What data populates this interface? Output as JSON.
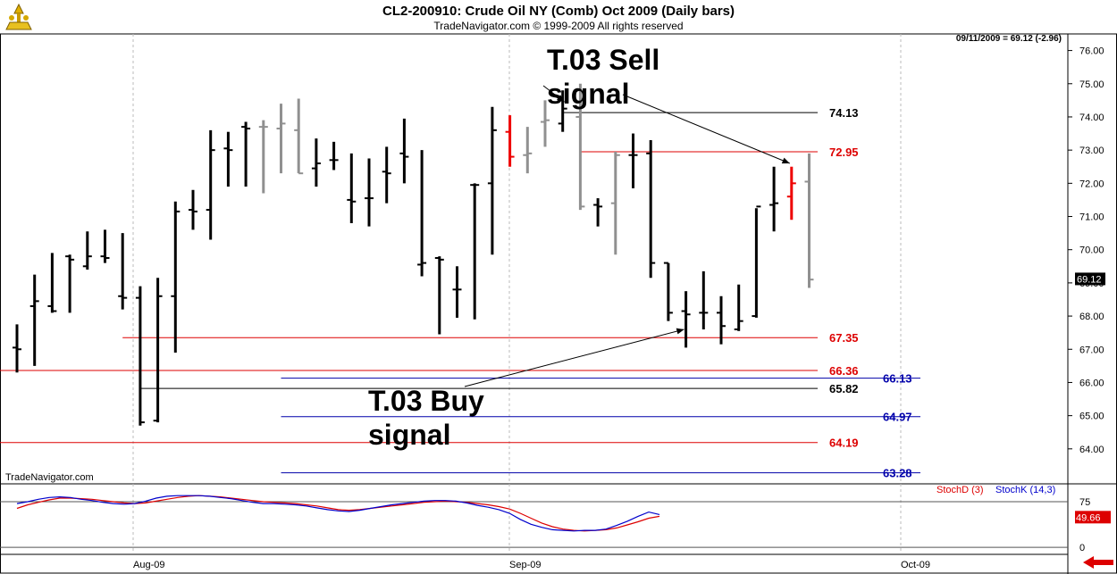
{
  "header": {
    "title": "CL2-200910:  Crude Oil NY (Comb) Oct 2009  (Daily bars)",
    "subtitle": "TradeNavigator.com © 1999-2009 All rights reserved",
    "last_readout": "09/11/2009 = 69.12 (-2.96)"
  },
  "footer": {
    "brand": "TradeNavigator.com"
  },
  "annotations": {
    "sell_signal": "T.03 Sell\nsignal",
    "buy_signal": "T.03 Buy\nsignal"
  },
  "oscillator": {
    "stochd_label": "StochD (3)",
    "stochk_label": "StochK (14,3)",
    "value_label": "49.66",
    "y_ticks": [
      "75",
      "0"
    ],
    "colors": {
      "stochd": "#dd0000",
      "stochk": "#0000cc"
    }
  },
  "colors": {
    "bar_black": "#000000",
    "bar_gray": "#909090",
    "bar_red": "#ee0000",
    "level_red": "#dd0000",
    "level_blue": "#0000aa",
    "level_black": "#000000"
  },
  "chart_data": {
    "type": "ohlc",
    "title": "CL2-200910:  Crude Oil NY (Comb) Oct 2009  (Daily bars)",
    "ylim": [
      63.0,
      76.5
    ],
    "y_ticks": [
      64,
      65,
      66,
      67,
      68,
      69,
      70,
      71,
      72,
      73,
      74,
      75,
      76
    ],
    "x_labels": [
      "Aug-09",
      "Sep-09",
      "Oct-09"
    ],
    "last_price": "69.12",
    "bars": [
      {
        "i": 0,
        "o": 67.05,
        "h": 67.75,
        "l": 66.3,
        "c": 67.0,
        "k": "b"
      },
      {
        "i": 1,
        "o": 68.3,
        "h": 69.25,
        "l": 66.5,
        "c": 68.45,
        "k": "b"
      },
      {
        "i": 2,
        "o": 68.3,
        "h": 69.9,
        "l": 68.1,
        "c": 68.15,
        "k": "b"
      },
      {
        "i": 3,
        "o": 69.8,
        "h": 69.85,
        "l": 68.1,
        "c": 69.7,
        "k": "b"
      },
      {
        "i": 4,
        "o": 69.5,
        "h": 70.55,
        "l": 69.4,
        "c": 69.8,
        "k": "b"
      },
      {
        "i": 5,
        "o": 69.8,
        "h": 70.6,
        "l": 69.6,
        "c": 69.75,
        "k": "b"
      },
      {
        "i": 6,
        "o": 68.6,
        "h": 70.5,
        "l": 68.2,
        "c": 68.55,
        "k": "b"
      },
      {
        "i": 7,
        "o": 68.55,
        "h": 68.9,
        "l": 64.7,
        "c": 64.8,
        "k": "b"
      },
      {
        "i": 8,
        "o": 64.85,
        "h": 69.15,
        "l": 64.8,
        "c": 68.6,
        "k": "b"
      },
      {
        "i": 9,
        "o": 68.6,
        "h": 71.45,
        "l": 66.9,
        "c": 71.15,
        "k": "b"
      },
      {
        "i": 10,
        "o": 71.2,
        "h": 71.8,
        "l": 70.6,
        "c": 71.15,
        "k": "b"
      },
      {
        "i": 11,
        "o": 71.2,
        "h": 73.6,
        "l": 70.3,
        "c": 73.0,
        "k": "b"
      },
      {
        "i": 12,
        "o": 73.05,
        "h": 73.55,
        "l": 71.9,
        "c": 73.0,
        "k": "b"
      },
      {
        "i": 13,
        "o": 73.7,
        "h": 73.85,
        "l": 71.9,
        "c": 73.65,
        "k": "b"
      },
      {
        "i": 14,
        "o": 73.7,
        "h": 73.9,
        "l": 71.7,
        "c": 73.7,
        "k": "g"
      },
      {
        "i": 15,
        "o": 73.65,
        "h": 74.4,
        "l": 72.3,
        "c": 73.8,
        "k": "g"
      },
      {
        "i": 16,
        "o": 73.6,
        "h": 74.55,
        "l": 72.3,
        "c": 72.3,
        "k": "g"
      },
      {
        "i": 17,
        "o": 72.45,
        "h": 73.35,
        "l": 71.9,
        "c": 72.6,
        "k": "b"
      },
      {
        "i": 18,
        "o": 72.7,
        "h": 73.25,
        "l": 72.4,
        "c": 72.7,
        "k": "b"
      },
      {
        "i": 19,
        "o": 71.5,
        "h": 72.9,
        "l": 70.8,
        "c": 71.45,
        "k": "b"
      },
      {
        "i": 20,
        "o": 71.55,
        "h": 72.75,
        "l": 70.7,
        "c": 71.55,
        "k": "b"
      },
      {
        "i": 21,
        "o": 72.35,
        "h": 73.1,
        "l": 71.4,
        "c": 72.3,
        "k": "b"
      },
      {
        "i": 22,
        "o": 72.9,
        "h": 73.95,
        "l": 72.0,
        "c": 72.8,
        "k": "b"
      },
      {
        "i": 23,
        "o": 69.55,
        "h": 73.0,
        "l": 69.2,
        "c": 69.6,
        "k": "b"
      },
      {
        "i": 24,
        "o": 69.75,
        "h": 69.8,
        "l": 67.45,
        "c": 69.7,
        "k": "b"
      },
      {
        "i": 25,
        "o": 68.8,
        "h": 69.5,
        "l": 67.95,
        "c": 68.8,
        "k": "b"
      },
      {
        "i": 26,
        "o": 71.95,
        "h": 72.0,
        "l": 67.9,
        "c": 71.95,
        "k": "b"
      },
      {
        "i": 27,
        "o": 72.0,
        "h": 74.3,
        "l": 69.85,
        "c": 73.6,
        "k": "b"
      },
      {
        "i": 28,
        "o": 73.55,
        "h": 74.05,
        "l": 72.5,
        "c": 72.8,
        "k": "r"
      },
      {
        "i": 29,
        "o": 72.85,
        "h": 73.7,
        "l": 72.3,
        "c": 72.9,
        "k": "g"
      },
      {
        "i": 30,
        "o": 73.85,
        "h": 74.5,
        "l": 73.1,
        "c": 73.9,
        "k": "g"
      },
      {
        "i": 31,
        "o": 73.8,
        "h": 74.8,
        "l": 73.55,
        "c": 74.25,
        "k": "b"
      },
      {
        "i": 32,
        "o": 74.0,
        "h": 75.0,
        "l": 71.2,
        "c": 71.3,
        "k": "g"
      },
      {
        "i": 33,
        "o": 71.35,
        "h": 71.55,
        "l": 70.7,
        "c": 71.3,
        "k": "b"
      },
      {
        "i": 34,
        "o": 71.4,
        "h": 72.95,
        "l": 69.85,
        "c": 72.85,
        "k": "g"
      },
      {
        "i": 35,
        "o": 72.85,
        "h": 73.5,
        "l": 71.85,
        "c": 72.85,
        "k": "b"
      },
      {
        "i": 36,
        "o": 72.9,
        "h": 73.3,
        "l": 69.15,
        "c": 69.6,
        "k": "b"
      },
      {
        "i": 37,
        "o": 69.6,
        "h": 69.6,
        "l": 67.85,
        "c": 68.1,
        "k": "b"
      },
      {
        "i": 38,
        "o": 68.15,
        "h": 68.75,
        "l": 67.05,
        "c": 68.05,
        "k": "b"
      },
      {
        "i": 39,
        "o": 68.1,
        "h": 69.35,
        "l": 67.6,
        "c": 68.1,
        "k": "b"
      },
      {
        "i": 40,
        "o": 68.1,
        "h": 68.6,
        "l": 67.15,
        "c": 67.7,
        "k": "b"
      },
      {
        "i": 41,
        "o": 67.6,
        "h": 68.95,
        "l": 67.55,
        "c": 67.85,
        "k": "b"
      },
      {
        "i": 42,
        "o": 68.0,
        "h": 71.25,
        "l": 67.95,
        "c": 71.3,
        "k": "b"
      },
      {
        "i": 43,
        "o": 71.35,
        "h": 72.5,
        "l": 70.55,
        "c": 71.4,
        "k": "b"
      },
      {
        "i": 44,
        "o": 71.6,
        "h": 72.5,
        "l": 70.9,
        "c": 72.0,
        "k": "r"
      },
      {
        "i": 45,
        "o": 72.05,
        "h": 72.9,
        "l": 68.85,
        "c": 69.1,
        "k": "g"
      }
    ],
    "levels": [
      {
        "value": 74.13,
        "label": "74.13",
        "color": "black",
        "from": "bar31",
        "to": "end"
      },
      {
        "value": 72.95,
        "label": "72.95",
        "color": "red",
        "from": "bar32",
        "to": "end"
      },
      {
        "value": 67.35,
        "label": "67.35",
        "color": "red",
        "from": "bar6",
        "to": "end"
      },
      {
        "value": 66.36,
        "label": "66.36",
        "color": "red",
        "from": "start",
        "to": "end"
      },
      {
        "value": 66.13,
        "label": "66.13",
        "color": "blue",
        "from": "bar15",
        "to": "far"
      },
      {
        "value": 65.82,
        "label": "65.82",
        "color": "black",
        "from": "bar7",
        "to": "end"
      },
      {
        "value": 64.97,
        "label": "64.97",
        "color": "blue",
        "from": "bar15",
        "to": "far"
      },
      {
        "value": 64.19,
        "label": "64.19",
        "color": "red",
        "from": "start",
        "to": "end"
      },
      {
        "value": 63.28,
        "label": "63.28",
        "color": "blue",
        "from": "bar15",
        "to": "far"
      }
    ],
    "stochK": [
      72,
      75,
      79,
      82,
      83,
      82,
      79,
      77,
      74,
      72,
      71,
      72,
      76,
      81,
      84,
      85,
      85,
      85,
      84,
      82,
      80,
      77,
      74,
      72,
      72,
      71,
      70,
      68,
      65,
      62,
      60,
      59,
      61,
      64,
      67,
      70,
      72,
      74,
      76,
      77,
      77,
      76,
      73,
      69,
      66,
      62,
      56,
      46,
      38,
      33,
      29,
      28,
      27,
      28,
      28,
      30,
      36,
      43,
      51,
      58,
      54
    ],
    "stochD": [
      64,
      70,
      74,
      78,
      81,
      81,
      80,
      79,
      77,
      75,
      73,
      72,
      73,
      76,
      79,
      82,
      84,
      85,
      84,
      83,
      81,
      79,
      77,
      75,
      74,
      73,
      72,
      70,
      68,
      65,
      62,
      61,
      62,
      64,
      66,
      68,
      70,
      72,
      74,
      75,
      76,
      75,
      74,
      72,
      70,
      67,
      63,
      56,
      48,
      40,
      34,
      30,
      28,
      27,
      28,
      29,
      32,
      37,
      42,
      48,
      51
    ],
    "stoch_ylim": [
      -10,
      100
    ]
  }
}
